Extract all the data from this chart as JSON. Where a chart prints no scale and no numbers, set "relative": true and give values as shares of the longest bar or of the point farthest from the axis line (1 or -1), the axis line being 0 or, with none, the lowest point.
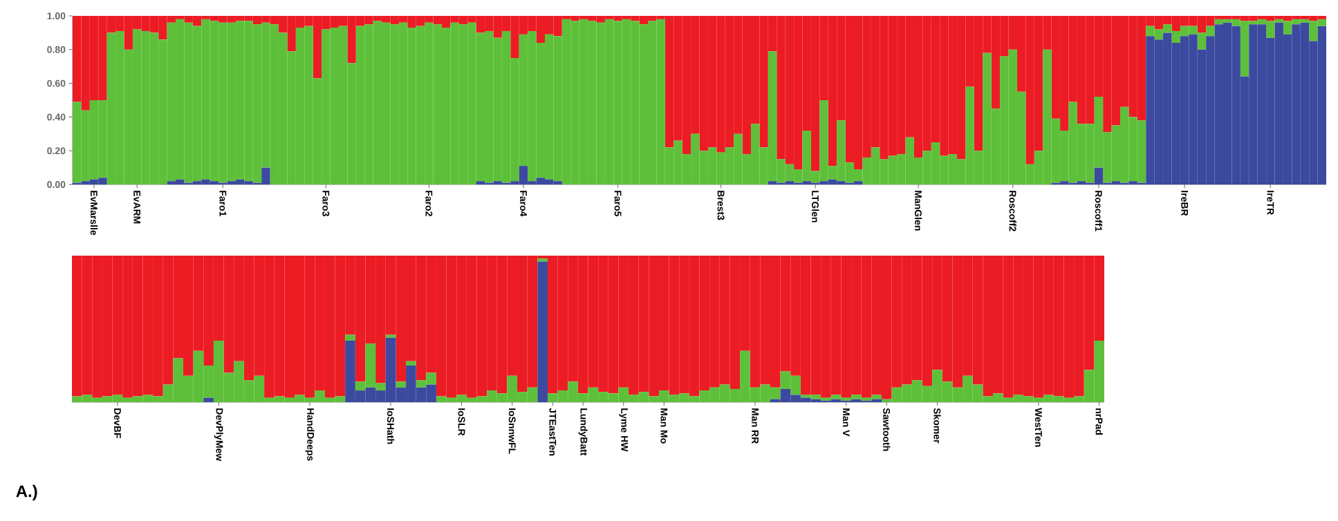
{
  "chart_data": [
    {
      "type": "bar",
      "stacked": true,
      "categories": [
        null,
        null,
        "EvMarslle",
        null,
        null,
        null,
        null,
        "EvARM",
        null,
        null,
        null,
        null,
        null,
        null,
        null,
        null,
        null,
        "Faro1",
        null,
        null,
        null,
        null,
        null,
        null,
        null,
        null,
        null,
        null,
        null,
        "Faro3",
        null,
        null,
        null,
        null,
        null,
        null,
        null,
        null,
        null,
        null,
        null,
        "Faro2",
        null,
        null,
        null,
        null,
        null,
        null,
        null,
        null,
        null,
        null,
        "Faro4",
        null,
        null,
        null,
        null,
        null,
        null,
        null,
        null,
        null,
        null,
        "Faro5",
        null,
        null,
        null,
        null,
        null,
        null,
        null,
        null,
        null,
        null,
        null,
        "Brest3",
        null,
        null,
        null,
        null,
        null,
        null,
        null,
        null,
        null,
        null,
        "LTGlen",
        null,
        null,
        null,
        null,
        null,
        null,
        null,
        null,
        null,
        null,
        null,
        "ManGlen",
        null,
        null,
        null,
        null,
        null,
        null,
        null,
        null,
        null,
        null,
        "Roscoff2",
        null,
        null,
        null,
        null,
        null,
        null,
        null,
        null,
        null,
        "Roscoff1",
        null,
        null,
        null,
        null,
        null,
        null,
        null,
        null,
        null,
        "IreBR",
        null,
        null,
        null,
        null,
        null,
        null,
        null,
        null,
        null,
        "IreTR",
        null,
        null,
        null,
        null,
        null,
        null
      ],
      "ylim": [
        0,
        1
      ],
      "yticks": [
        {
          "value": 0,
          "label": "0.00"
        },
        {
          "value": 0.2,
          "label": "0.20"
        },
        {
          "value": 0.4,
          "label": "0.40"
        },
        {
          "value": 0.6,
          "label": "0.60"
        },
        {
          "value": 0.8,
          "label": "0.80"
        },
        {
          "value": 1,
          "label": "1.00"
        }
      ],
      "series": [
        {
          "color": "#3b4a9e",
          "values": [
            0.01,
            0.02,
            0.03,
            0.04,
            0,
            0,
            0,
            0,
            0,
            0,
            0,
            0.02,
            0.03,
            0.01,
            0.02,
            0.03,
            0.02,
            0.01,
            0.02,
            0.03,
            0.02,
            0.01,
            0.1,
            0,
            0,
            0,
            0,
            0,
            0,
            0,
            0,
            0,
            0,
            0,
            0,
            0,
            0,
            0,
            0,
            0,
            0,
            0,
            0,
            0,
            0,
            0,
            0,
            0.02,
            0.01,
            0.02,
            0.01,
            0.02,
            0.11,
            0.02,
            0.04,
            0.03,
            0.02,
            0,
            0,
            0,
            0,
            0,
            0,
            0,
            0,
            0,
            0,
            0,
            0,
            0,
            0,
            0,
            0,
            0,
            0,
            0,
            0,
            0,
            0,
            0,
            0,
            0.02,
            0.01,
            0.02,
            0.01,
            0.02,
            0.01,
            0.02,
            0.03,
            0.02,
            0.01,
            0.02,
            0,
            0,
            0,
            0,
            0,
            0,
            0,
            0,
            0,
            0,
            0,
            0,
            0,
            0,
            0,
            0,
            0,
            0,
            0,
            0,
            0,
            0,
            0.01,
            0.02,
            0.01,
            0.02,
            0.01,
            0.1,
            0.01,
            0.02,
            0.01,
            0.02,
            0.01,
            0.88,
            0.86,
            0.9,
            0.84,
            0.88,
            0.89,
            0.8,
            0.88,
            0.95,
            0.96,
            0.94,
            0.64,
            0.95,
            0.95,
            0.87,
            0.96,
            0.89,
            0.95,
            0.96,
            0.85,
            0.94
          ]
        },
        {
          "color": "#5ec03a",
          "values": [
            0.48,
            0.42,
            0.47,
            0.46,
            0.9,
            0.91,
            0.8,
            0.92,
            0.91,
            0.9,
            0.86,
            0.94,
            0.95,
            0.95,
            0.92,
            0.95,
            0.95,
            0.95,
            0.94,
            0.94,
            0.95,
            0.94,
            0.86,
            0.95,
            0.9,
            0.79,
            0.93,
            0.94,
            0.63,
            0.92,
            0.93,
            0.94,
            0.72,
            0.94,
            0.95,
            0.97,
            0.96,
            0.95,
            0.96,
            0.93,
            0.94,
            0.96,
            0.95,
            0.93,
            0.96,
            0.95,
            0.96,
            0.88,
            0.9,
            0.85,
            0.9,
            0.73,
            0.78,
            0.89,
            0.8,
            0.86,
            0.86,
            0.98,
            0.97,
            0.98,
            0.97,
            0.96,
            0.98,
            0.97,
            0.98,
            0.97,
            0.95,
            0.97,
            0.98,
            0.22,
            0.26,
            0.18,
            0.3,
            0.2,
            0.22,
            0.19,
            0.22,
            0.3,
            0.18,
            0.36,
            0.22,
            0.77,
            0.14,
            0.1,
            0.08,
            0.3,
            0.07,
            0.48,
            0.08,
            0.36,
            0.12,
            0.07,
            0.16,
            0.22,
            0.15,
            0.17,
            0.18,
            0.28,
            0.16,
            0.2,
            0.25,
            0.17,
            0.18,
            0.15,
            0.58,
            0.2,
            0.78,
            0.45,
            0.76,
            0.8,
            0.55,
            0.12,
            0.2,
            0.8,
            0.38,
            0.3,
            0.48,
            0.34,
            0.35,
            0.42,
            0.3,
            0.33,
            0.45,
            0.38,
            0.37,
            0.06,
            0.06,
            0.05,
            0.07,
            0.06,
            0.05,
            0.1,
            0.06,
            0.03,
            0.02,
            0.04,
            0.33,
            0.02,
            0.03,
            0.1,
            0.02,
            0.08,
            0.03,
            0.02,
            0.12,
            0.04
          ]
        },
        {
          "color": "#ec1c24",
          "values": [
            0.51,
            0.56,
            0.5,
            0.5,
            0.1,
            0.09,
            0.2,
            0.08,
            0.09,
            0.1,
            0.14,
            0.04,
            0.02,
            0.04,
            0.06,
            0.02,
            0.03,
            0.04,
            0.04,
            0.03,
            0.03,
            0.05,
            0.04,
            0.05,
            0.1,
            0.21,
            0.07,
            0.06,
            0.37,
            0.08,
            0.07,
            0.06,
            0.28,
            0.06,
            0.05,
            0.03,
            0.04,
            0.05,
            0.04,
            0.07,
            0.06,
            0.04,
            0.05,
            0.07,
            0.04,
            0.05,
            0.04,
            0.1,
            0.09,
            0.13,
            0.09,
            0.25,
            0.11,
            0.09,
            0.16,
            0.11,
            0.12,
            0.02,
            0.03,
            0.02,
            0.03,
            0.04,
            0.02,
            0.03,
            0.02,
            0.03,
            0.05,
            0.03,
            0.02,
            0.78,
            0.74,
            0.82,
            0.7,
            0.8,
            0.78,
            0.81,
            0.78,
            0.7,
            0.82,
            0.64,
            0.78,
            0.21,
            0.85,
            0.88,
            0.91,
            0.68,
            0.92,
            0.5,
            0.89,
            0.62,
            0.87,
            0.91,
            0.84,
            0.78,
            0.85,
            0.83,
            0.82,
            0.72,
            0.84,
            0.8,
            0.75,
            0.83,
            0.82,
            0.85,
            0.42,
            0.8,
            0.22,
            0.55,
            0.24,
            0.2,
            0.45,
            0.88,
            0.8,
            0.2,
            0.61,
            0.68,
            0.51,
            0.64,
            0.64,
            0.48,
            0.69,
            0.65,
            0.54,
            0.6,
            0.62,
            0.06,
            0.08,
            0.05,
            0.09,
            0.06,
            0.06,
            0.1,
            0.06,
            0.02,
            0.02,
            0.02,
            0.03,
            0.03,
            0.02,
            0.03,
            0.02,
            0.03,
            0.02,
            0.02,
            0.03,
            0.02
          ]
        }
      ]
    },
    {
      "type": "bar",
      "stacked": true,
      "relative": true,
      "categories": [
        null,
        null,
        null,
        null,
        "DevBF",
        null,
        null,
        null,
        null,
        null,
        null,
        null,
        null,
        null,
        "DevPlyMew",
        null,
        null,
        null,
        null,
        null,
        null,
        null,
        null,
        "HandDeeps",
        null,
        null,
        null,
        null,
        null,
        null,
        null,
        "IoSHath",
        null,
        null,
        null,
        null,
        null,
        null,
        "IoSLR",
        null,
        null,
        null,
        null,
        "IoSnnwFL",
        null,
        null,
        null,
        "JTEastTen",
        null,
        null,
        "LundyBatt",
        null,
        null,
        null,
        "Lyme HW",
        null,
        null,
        null,
        "Man Mo",
        null,
        null,
        null,
        null,
        null,
        null,
        null,
        null,
        "Man RR",
        null,
        null,
        null,
        null,
        null,
        null,
        null,
        null,
        "Man V",
        null,
        null,
        null,
        "Sawtooth",
        null,
        null,
        null,
        null,
        "Skomer",
        null,
        null,
        null,
        null,
        null,
        null,
        null,
        null,
        null,
        "WestTen",
        null,
        null,
        null,
        null,
        null,
        "nrPad"
      ],
      "annotations": [
        "A.)"
      ],
      "series": [
        {
          "color": "#3b4a9e",
          "values": [
            0,
            0,
            0,
            0,
            0,
            0,
            0,
            0,
            0,
            0,
            0,
            0,
            0,
            0.03,
            0,
            0,
            0,
            0,
            0,
            0,
            0,
            0,
            0,
            0,
            0,
            0,
            0,
            0.42,
            0.08,
            0.1,
            0.08,
            0.44,
            0.1,
            0.25,
            0.1,
            0.12,
            0,
            0,
            0,
            0,
            0,
            0,
            0,
            0,
            0,
            0,
            0.96,
            0,
            0,
            0,
            0,
            0,
            0,
            0,
            0,
            0,
            0,
            0,
            0,
            0,
            0,
            0,
            0,
            0,
            0,
            0,
            0,
            0,
            0,
            0.02,
            0.09,
            0.05,
            0.03,
            0.02,
            0.01,
            0.02,
            0.01,
            0.02,
            0.01,
            0.02,
            0,
            0,
            0,
            0,
            0,
            0,
            0,
            0,
            0,
            0,
            0,
            0,
            0,
            0,
            0,
            0,
            0,
            0,
            0,
            0,
            0,
            0
          ]
        },
        {
          "color": "#5ec03a",
          "values": [
            0.04,
            0.05,
            0.03,
            0.04,
            0.05,
            0.03,
            0.04,
            0.05,
            0.04,
            0.12,
            0.3,
            0.18,
            0.35,
            0.22,
            0.42,
            0.2,
            0.28,
            0.15,
            0.18,
            0.03,
            0.04,
            0.03,
            0.05,
            0.03,
            0.08,
            0.03,
            0.04,
            0.04,
            0.06,
            0.3,
            0.05,
            0.02,
            0.04,
            0.03,
            0.05,
            0.08,
            0.04,
            0.03,
            0.05,
            0.03,
            0.04,
            0.08,
            0.06,
            0.18,
            0.07,
            0.1,
            0.02,
            0.06,
            0.08,
            0.14,
            0.06,
            0.1,
            0.07,
            0.06,
            0.1,
            0.05,
            0.07,
            0.04,
            0.08,
            0.05,
            0.06,
            0.04,
            0.08,
            0.1,
            0.12,
            0.09,
            0.35,
            0.1,
            0.12,
            0.08,
            0.12,
            0.13,
            0.02,
            0.03,
            0.02,
            0.03,
            0.02,
            0.03,
            0.02,
            0.03,
            0.02,
            0.1,
            0.12,
            0.15,
            0.11,
            0.22,
            0.14,
            0.1,
            0.18,
            0.12,
            0.04,
            0.06,
            0.03,
            0.05,
            0.04,
            0.03,
            0.05,
            0.04,
            0.03,
            0.04,
            0.22,
            0.42
          ]
        },
        {
          "color": "#ec1c24",
          "values": [
            0.96,
            0.95,
            0.97,
            0.96,
            0.95,
            0.97,
            0.96,
            0.95,
            0.96,
            0.88,
            0.7,
            0.82,
            0.65,
            0.75,
            0.58,
            0.8,
            0.72,
            0.85,
            0.82,
            0.97,
            0.96,
            0.97,
            0.95,
            0.97,
            0.92,
            0.97,
            0.96,
            0.54,
            0.86,
            0.6,
            0.87,
            0.54,
            0.86,
            0.72,
            0.85,
            0.8,
            0.96,
            0.97,
            0.95,
            0.97,
            0.96,
            0.92,
            0.94,
            0.82,
            0.93,
            0.9,
            0.02,
            0.94,
            0.92,
            0.86,
            0.94,
            0.9,
            0.93,
            0.94,
            0.9,
            0.95,
            0.93,
            0.96,
            0.92,
            0.95,
            0.94,
            0.96,
            0.92,
            0.9,
            0.88,
            0.91,
            0.65,
            0.9,
            0.88,
            0.9,
            0.79,
            0.82,
            0.95,
            0.95,
            0.97,
            0.95,
            0.97,
            0.95,
            0.97,
            0.95,
            0.98,
            0.9,
            0.88,
            0.85,
            0.89,
            0.78,
            0.86,
            0.9,
            0.82,
            0.88,
            0.96,
            0.94,
            0.97,
            0.95,
            0.96,
            0.97,
            0.95,
            0.96,
            0.97,
            0.96,
            0.78,
            0.58
          ]
        }
      ]
    }
  ]
}
